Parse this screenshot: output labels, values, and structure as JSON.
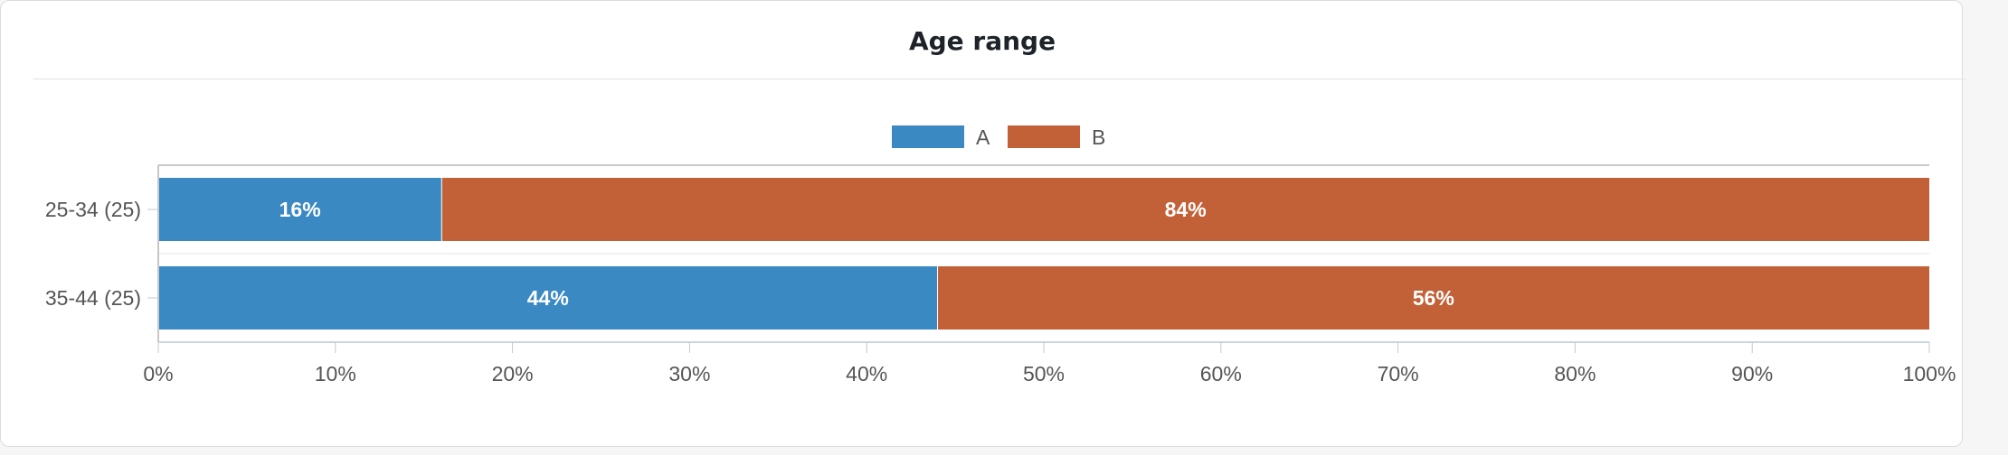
{
  "chart_data": {
    "type": "bar",
    "orientation": "horizontal",
    "stacked": true,
    "title": "Age range",
    "categories": [
      "25-34 (25)",
      "35-44 (25)"
    ],
    "series": [
      {
        "name": "A",
        "color": "#3b89c2",
        "values": [
          16,
          44
        ],
        "labels": [
          "16%",
          "44%"
        ]
      },
      {
        "name": "B",
        "color": "#c26137",
        "values": [
          84,
          56
        ],
        "labels": [
          "84%",
          "56%"
        ]
      }
    ],
    "xlim": [
      0,
      100
    ],
    "x_ticks": [
      "0%",
      "10%",
      "20%",
      "30%",
      "40%",
      "50%",
      "60%",
      "70%",
      "80%",
      "90%",
      "100%"
    ],
    "legend_position": "top-center",
    "grid": false
  }
}
